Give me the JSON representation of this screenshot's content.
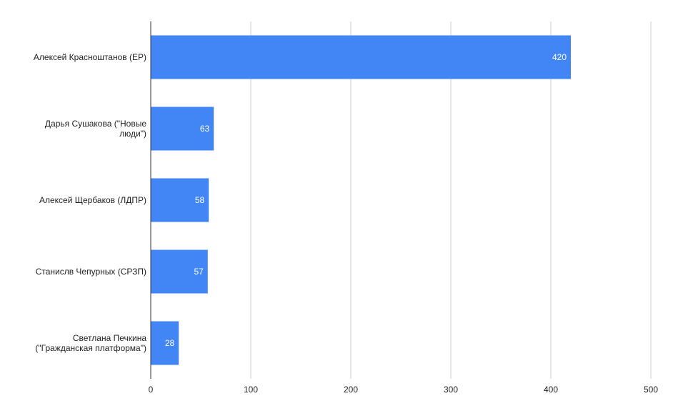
{
  "chart_data": {
    "type": "bar",
    "orientation": "horizontal",
    "title": "",
    "xlabel": "",
    "ylabel": "",
    "categories": [
      [
        "Алексей Красноштанов (ЕР)"
      ],
      [
        "Дарья Сушакова (\"Новые",
        "люди\")"
      ],
      [
        "Алексей Щербаков (ЛДПР)"
      ],
      [
        "Станислв Чепурных (СРЗП)"
      ],
      [
        "Светлана Печкина",
        "(\"Гражданская платформа\")"
      ]
    ],
    "values": [
      420,
      63,
      58,
      57,
      28
    ],
    "data_labels": [
      "420",
      "63",
      "58",
      "57",
      "28"
    ],
    "xlim": [
      0,
      500
    ],
    "xticks": [
      0,
      100,
      200,
      300,
      400,
      500
    ],
    "xtick_labels": [
      "0",
      "100",
      "200",
      "300",
      "400",
      "500"
    ],
    "grid": true,
    "legend": "none",
    "bar_color": "#4285f4",
    "grid_color": "#cccccc",
    "axis_color": "#333333"
  }
}
